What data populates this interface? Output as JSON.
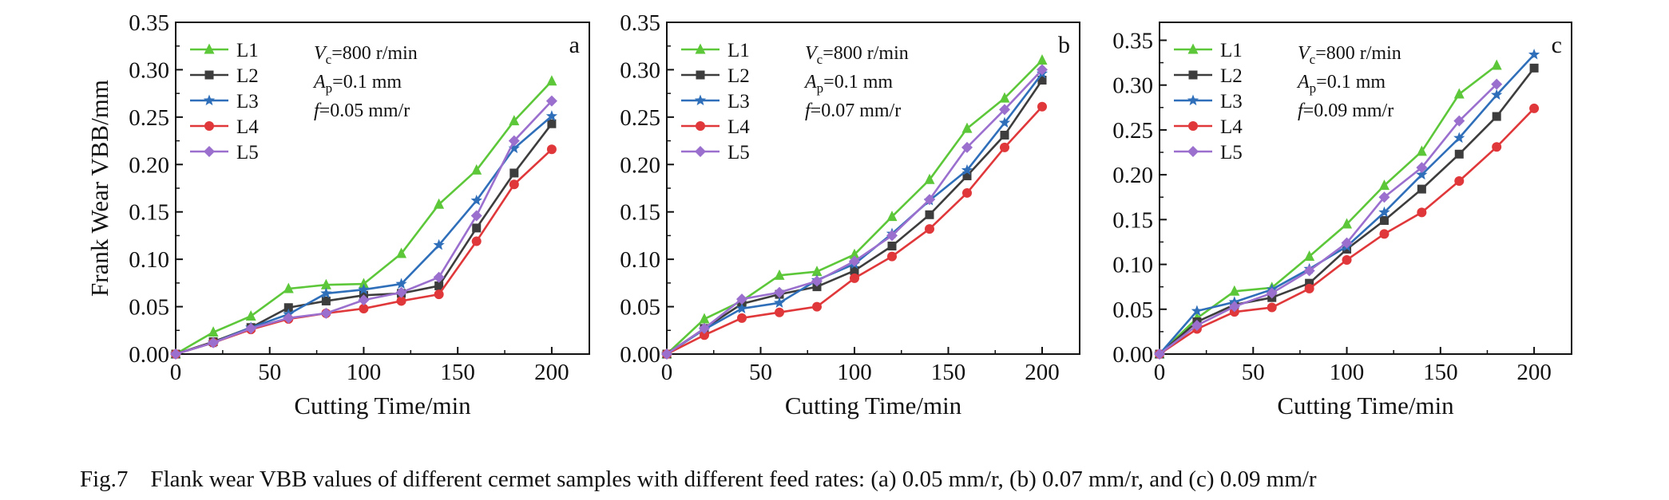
{
  "caption": {
    "label": "Fig.7",
    "text": "Flank wear VBB values of different cermet samples with different feed rates: (a) 0.05 mm/r, (b) 0.07 mm/r, and (c) 0.09 mm/r"
  },
  "series_style": [
    {
      "name": "L1",
      "color": "#5dc73a",
      "marker": "triangle"
    },
    {
      "name": "L2",
      "color": "#3d3d3d",
      "marker": "square"
    },
    {
      "name": "L3",
      "color": "#2f6fba",
      "marker": "star"
    },
    {
      "name": "L4",
      "color": "#e0383a",
      "marker": "circle"
    },
    {
      "name": "L5",
      "color": "#9a6fce",
      "marker": "diamond"
    }
  ],
  "chart_data": [
    {
      "type": "line",
      "panel_label": "a",
      "ylabel": "Frank Wear VBB/mm",
      "xlabel": "Cutting Time/min",
      "xlim": [
        0,
        220
      ],
      "ylim": [
        0,
        0.35
      ],
      "xticks": [
        "0",
        "50",
        "100",
        "150",
        "200"
      ],
      "yticks": [
        "0.00",
        "0.05",
        "0.10",
        "0.15",
        "0.20",
        "0.25",
        "0.30",
        "0.35"
      ],
      "xtick_values": [
        0,
        50,
        100,
        150,
        200
      ],
      "ytick_values": [
        0,
        0.05,
        0.1,
        0.15,
        0.2,
        0.25,
        0.3,
        0.35
      ],
      "legend_position": "top-left",
      "conditions": [
        "V",
        "c",
        "=800 r/min",
        "A",
        "p",
        "=0.1 mm",
        "f",
        "=0.05 mm/r"
      ],
      "x": [
        0,
        20,
        40,
        60,
        80,
        100,
        120,
        140,
        160,
        180,
        200
      ],
      "series": [
        {
          "name": "L1",
          "values": [
            0,
            0.023,
            0.04,
            0.069,
            0.073,
            0.074,
            0.106,
            0.158,
            0.194,
            0.246,
            0.288
          ]
        },
        {
          "name": "L2",
          "values": [
            0,
            0.013,
            0.028,
            0.049,
            0.056,
            0.062,
            0.064,
            0.072,
            0.133,
            0.191,
            0.243
          ]
        },
        {
          "name": "L3",
          "values": [
            0,
            0.012,
            0.028,
            0.042,
            0.064,
            0.068,
            0.074,
            0.115,
            0.162,
            0.217,
            0.251
          ]
        },
        {
          "name": "L4",
          "values": [
            0,
            0.012,
            0.026,
            0.037,
            0.043,
            0.048,
            0.056,
            0.063,
            0.119,
            0.179,
            0.216
          ]
        },
        {
          "name": "L5",
          "values": [
            0,
            0.012,
            0.027,
            0.038,
            0.043,
            0.057,
            0.065,
            0.081,
            0.146,
            0.225,
            0.267
          ]
        }
      ]
    },
    {
      "type": "line",
      "panel_label": "b",
      "ylabel": "",
      "xlabel": "Cutting Time/min",
      "xlim": [
        0,
        220
      ],
      "ylim": [
        0,
        0.35
      ],
      "xticks": [
        "0",
        "50",
        "100",
        "150",
        "200"
      ],
      "yticks": [
        "0.00",
        "0.05",
        "0.10",
        "0.15",
        "0.20",
        "0.25",
        "0.30",
        "0.35"
      ],
      "xtick_values": [
        0,
        50,
        100,
        150,
        200
      ],
      "ytick_values": [
        0,
        0.05,
        0.1,
        0.15,
        0.2,
        0.25,
        0.3,
        0.35
      ],
      "legend_position": "top-left",
      "conditions": [
        "V",
        "c",
        "=800 r/min",
        "A",
        "p",
        "=0.1 mm",
        "f",
        "=0.07 mm/r"
      ],
      "x": [
        0,
        20,
        40,
        60,
        80,
        100,
        120,
        140,
        160,
        180,
        200
      ],
      "series": [
        {
          "name": "L1",
          "values": [
            0,
            0.037,
            0.056,
            0.083,
            0.087,
            0.105,
            0.145,
            0.184,
            0.238,
            0.27,
            0.31
          ]
        },
        {
          "name": "L2",
          "values": [
            0,
            0.027,
            0.053,
            0.063,
            0.071,
            0.088,
            0.114,
            0.147,
            0.188,
            0.231,
            0.289
          ]
        },
        {
          "name": "L3",
          "values": [
            0,
            0.026,
            0.048,
            0.054,
            0.078,
            0.095,
            0.127,
            0.162,
            0.194,
            0.244,
            0.296
          ]
        },
        {
          "name": "L4",
          "values": [
            0,
            0.02,
            0.038,
            0.044,
            0.05,
            0.08,
            0.103,
            0.132,
            0.17,
            0.218,
            0.261
          ]
        },
        {
          "name": "L5",
          "values": [
            0,
            0.027,
            0.058,
            0.065,
            0.077,
            0.098,
            0.125,
            0.163,
            0.218,
            0.258,
            0.3
          ]
        }
      ]
    },
    {
      "type": "line",
      "panel_label": "c",
      "ylabel": "",
      "xlabel": "Cutting Time/min",
      "xlim": [
        0,
        220
      ],
      "ylim": [
        0,
        0.37
      ],
      "xticks": [
        "0",
        "50",
        "100",
        "150",
        "200"
      ],
      "yticks": [
        "0.00",
        "0.05",
        "0.10",
        "0.15",
        "0.20",
        "0.25",
        "0.30",
        "0.35"
      ],
      "xtick_values": [
        0,
        50,
        100,
        150,
        200
      ],
      "ytick_values": [
        0,
        0.05,
        0.1,
        0.15,
        0.2,
        0.25,
        0.3,
        0.35
      ],
      "legend_position": "top-left",
      "conditions": [
        "V",
        "c",
        "=800 r/min",
        "A",
        "p",
        "=0.1 mm",
        "f",
        "=0.09 mm/r"
      ],
      "x": [
        0,
        20,
        40,
        60,
        80,
        100,
        120,
        140,
        160,
        180,
        200
      ],
      "series": [
        {
          "name": "L1",
          "x": [
            0,
            20,
            40,
            60,
            80,
            100,
            120,
            140,
            160,
            180
          ],
          "values": [
            0,
            0.04,
            0.07,
            0.074,
            0.109,
            0.145,
            0.188,
            0.226,
            0.29,
            0.322
          ]
        },
        {
          "name": "L2",
          "values": [
            0,
            0.036,
            0.055,
            0.063,
            0.079,
            0.117,
            0.149,
            0.184,
            0.223,
            0.265,
            0.319
          ]
        },
        {
          "name": "L3",
          "values": [
            0,
            0.048,
            0.058,
            0.072,
            0.095,
            0.12,
            0.158,
            0.2,
            0.241,
            0.289,
            0.334
          ]
        },
        {
          "name": "L4",
          "values": [
            0,
            0.028,
            0.047,
            0.052,
            0.073,
            0.105,
            0.134,
            0.158,
            0.193,
            0.231,
            0.274
          ]
        },
        {
          "name": "L5",
          "x": [
            0,
            20,
            40,
            60,
            80,
            100,
            120,
            140,
            160,
            180
          ],
          "values": [
            0,
            0.032,
            0.053,
            0.068,
            0.093,
            0.124,
            0.175,
            0.208,
            0.26,
            0.301
          ]
        }
      ]
    }
  ]
}
